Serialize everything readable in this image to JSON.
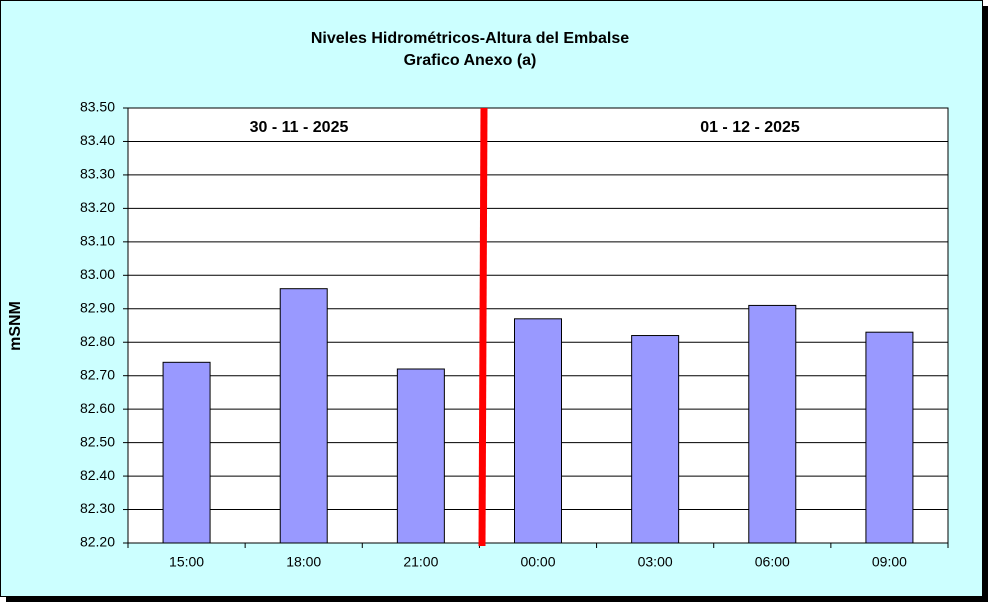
{
  "chart_data": {
    "type": "bar",
    "title": "Niveles Hidrométricos-Altura del Embalse",
    "subtitle": "Grafico Anexo (a)",
    "y_label": "mSNM",
    "annotations": [
      "30 - 11 - 2025",
      "01 - 12 - 2025"
    ],
    "categories": [
      "15:00",
      "18:00",
      "21:00",
      "00:00",
      "03:00",
      "06:00",
      "09:00"
    ],
    "values": [
      82.74,
      82.96,
      82.72,
      82.87,
      82.82,
      82.91,
      82.83
    ],
    "color": "#9999ff",
    "ylim": [
      82.2,
      83.5
    ],
    "yticks": [
      {
        "value": 82.2,
        "label": "82.20"
      },
      {
        "value": 82.3,
        "label": "82.30"
      },
      {
        "value": 82.4,
        "label": "82.40"
      },
      {
        "value": 82.5,
        "label": "82.50"
      },
      {
        "value": 82.6,
        "label": "82.60"
      },
      {
        "value": 82.7,
        "label": "82.70"
      },
      {
        "value": 82.8,
        "label": "82.80"
      },
      {
        "value": 82.9,
        "label": "82.90"
      },
      {
        "value": 83.0,
        "label": "83.00"
      },
      {
        "value": 83.1,
        "label": "83.10"
      },
      {
        "value": 83.2,
        "label": "83.20"
      },
      {
        "value": 83.3,
        "label": "83.30"
      },
      {
        "value": 83.4,
        "label": "83.40"
      },
      {
        "value": 83.5,
        "label": "83.50"
      }
    ],
    "grid": true
  }
}
